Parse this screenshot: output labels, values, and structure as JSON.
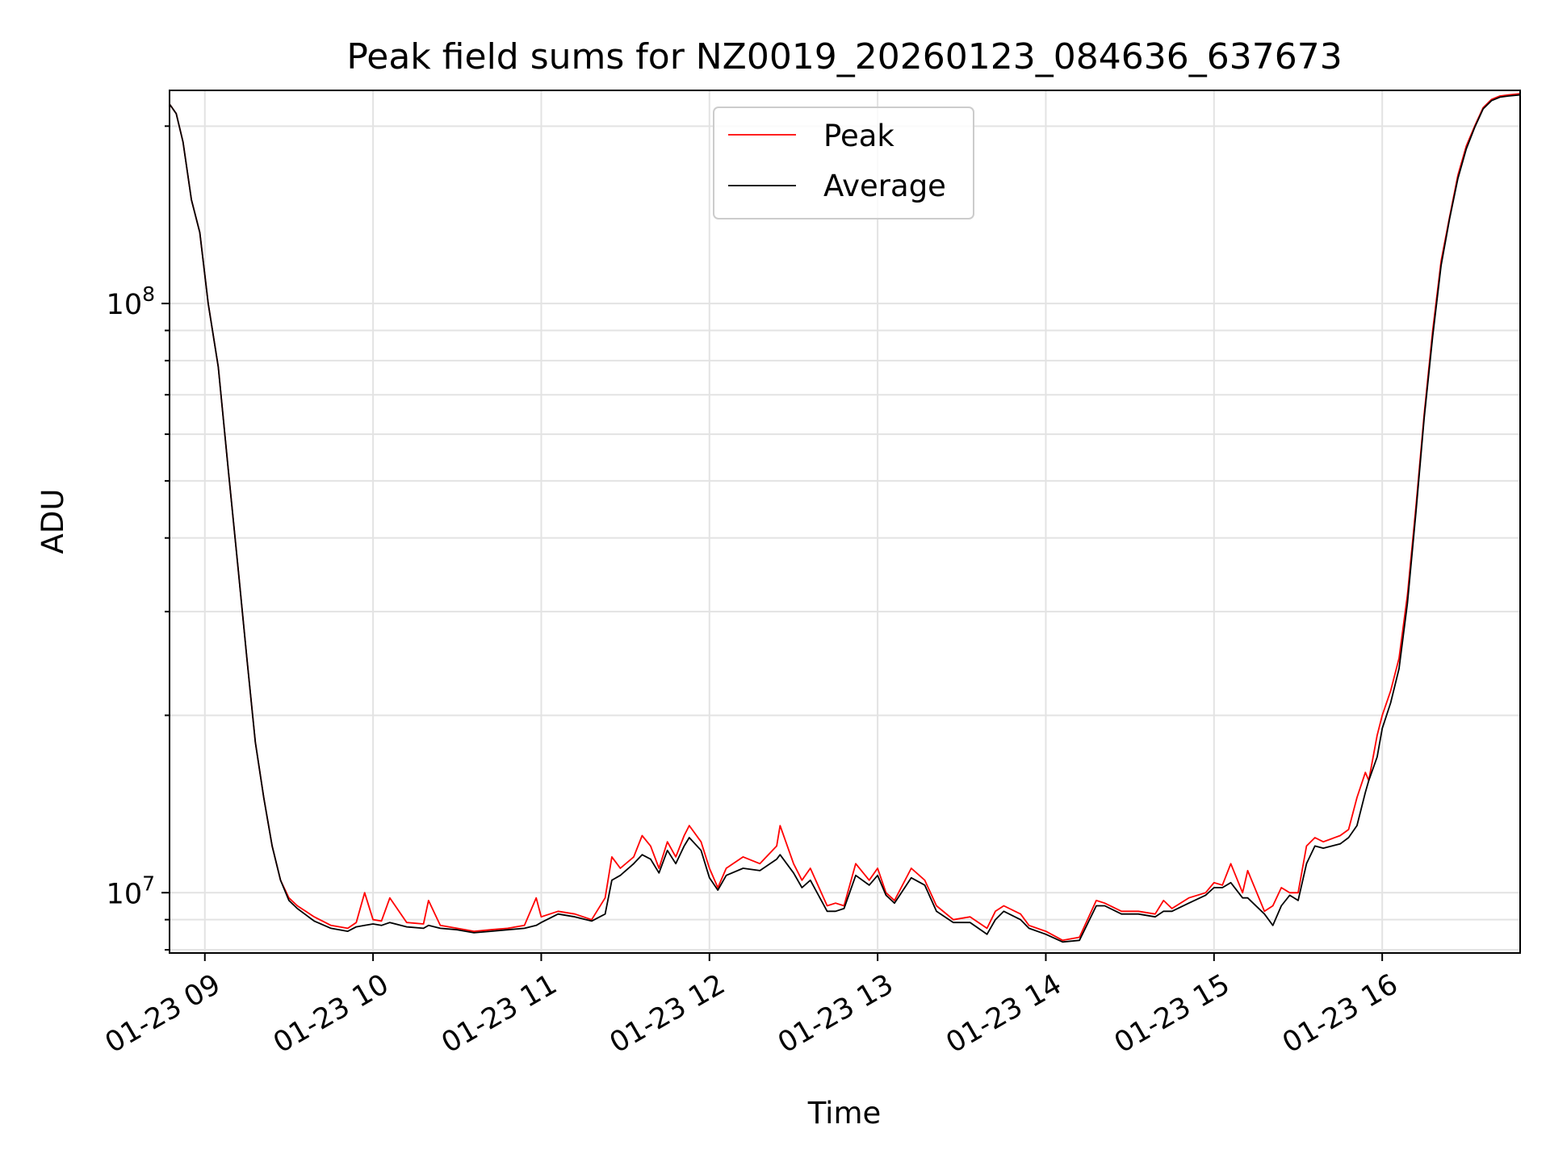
{
  "chart_data": {
    "type": "line",
    "title": "Peak field sums for NZ0019_20260123_084636_637673",
    "xlabel": "Time",
    "ylabel": "ADU",
    "y_scale": "log",
    "x_unit": "hour of 2026-01-23",
    "xlim": [
      8.79,
      16.82
    ],
    "ylim": [
      7900000,
      230000000
    ],
    "grid": true,
    "legend_position": "upper center",
    "x_tick_labels": [
      "01-23 09",
      "01-23 10",
      "01-23 11",
      "01-23 12",
      "01-23 13",
      "01-23 14",
      "01-23 15",
      "01-23 16"
    ],
    "y_tick_labels": [
      {
        "base": "10",
        "exp": "7"
      },
      {
        "base": "10",
        "exp": "8"
      }
    ],
    "series": [
      {
        "name": "Peak",
        "color": "#ff0000",
        "x": [
          8.79,
          8.83,
          8.87,
          8.92,
          8.97,
          9.02,
          9.08,
          9.14,
          9.2,
          9.25,
          9.3,
          9.35,
          9.4,
          9.45,
          9.5,
          9.55,
          9.65,
          9.75,
          9.85,
          9.9,
          9.95,
          10.0,
          10.05,
          10.1,
          10.2,
          10.3,
          10.33,
          10.4,
          10.5,
          10.6,
          10.7,
          10.8,
          10.9,
          10.97,
          11.0,
          11.1,
          11.2,
          11.3,
          11.38,
          11.42,
          11.47,
          11.55,
          11.6,
          11.65,
          11.7,
          11.75,
          11.8,
          11.85,
          11.88,
          11.95,
          12.0,
          12.05,
          12.1,
          12.2,
          12.3,
          12.4,
          12.42,
          12.5,
          12.55,
          12.6,
          12.7,
          12.75,
          12.8,
          12.87,
          12.95,
          13.0,
          13.05,
          13.1,
          13.2,
          13.28,
          13.35,
          13.45,
          13.55,
          13.65,
          13.7,
          13.75,
          13.85,
          13.9,
          14.0,
          14.1,
          14.2,
          14.3,
          14.35,
          14.45,
          14.55,
          14.65,
          14.7,
          14.75,
          14.85,
          14.95,
          15.0,
          15.05,
          15.1,
          15.17,
          15.2,
          15.3,
          15.35,
          15.4,
          15.45,
          15.5,
          15.55,
          15.6,
          15.65,
          15.75,
          15.8,
          15.85,
          15.9,
          15.92,
          15.97,
          16.0,
          16.05,
          16.1,
          16.15,
          16.2,
          16.25,
          16.3,
          16.35,
          16.4,
          16.45,
          16.5,
          16.55,
          16.6,
          16.65,
          16.7,
          16.75,
          16.82
        ],
        "values": [
          218000000,
          210000000,
          188000000,
          150000000,
          132000000,
          100000000,
          78000000,
          52000000,
          35000000,
          25000000,
          18000000,
          14500000,
          12000000,
          10500000,
          9800000,
          9500000,
          9100000,
          8800000,
          8700000,
          8900000,
          10000000,
          9000000,
          8950000,
          9800000,
          8900000,
          8850000,
          9700000,
          8800000,
          8700000,
          8600000,
          8650000,
          8700000,
          8800000,
          9800000,
          9100000,
          9300000,
          9200000,
          9000000,
          9800000,
          11500000,
          11000000,
          11500000,
          12500000,
          12000000,
          11000000,
          12200000,
          11500000,
          12500000,
          13000000,
          12200000,
          11000000,
          10200000,
          11000000,
          11500000,
          11200000,
          12000000,
          13000000,
          11200000,
          10500000,
          11000000,
          9500000,
          9600000,
          9500000,
          11200000,
          10500000,
          11000000,
          10000000,
          9700000,
          11000000,
          10500000,
          9500000,
          9000000,
          9100000,
          8700000,
          9300000,
          9500000,
          9200000,
          8800000,
          8600000,
          8300000,
          8400000,
          9700000,
          9600000,
          9300000,
          9300000,
          9200000,
          9700000,
          9400000,
          9800000,
          10000000,
          10400000,
          10300000,
          11200000,
          10000000,
          10900000,
          9300000,
          9500000,
          10200000,
          10000000,
          10000000,
          12000000,
          12400000,
          12200000,
          12500000,
          12800000,
          14500000,
          16000000,
          15500000,
          18500000,
          20000000,
          22000000,
          25000000,
          32000000,
          45000000,
          65000000,
          90000000,
          118000000,
          140000000,
          165000000,
          185000000,
          200000000,
          215000000,
          222000000,
          225000000,
          226000000,
          227000000
        ]
      },
      {
        "name": "Average",
        "color": "#000000",
        "x": [
          8.79,
          8.83,
          8.87,
          8.92,
          8.97,
          9.02,
          9.08,
          9.14,
          9.2,
          9.25,
          9.3,
          9.35,
          9.4,
          9.45,
          9.5,
          9.55,
          9.65,
          9.75,
          9.85,
          9.9,
          9.95,
          10.0,
          10.05,
          10.1,
          10.2,
          10.3,
          10.33,
          10.4,
          10.5,
          10.6,
          10.7,
          10.8,
          10.9,
          10.97,
          11.0,
          11.1,
          11.2,
          11.3,
          11.38,
          11.42,
          11.47,
          11.55,
          11.6,
          11.65,
          11.7,
          11.75,
          11.8,
          11.85,
          11.88,
          11.95,
          12.0,
          12.05,
          12.1,
          12.2,
          12.3,
          12.4,
          12.42,
          12.5,
          12.55,
          12.6,
          12.7,
          12.75,
          12.8,
          12.87,
          12.95,
          13.0,
          13.05,
          13.1,
          13.2,
          13.28,
          13.35,
          13.45,
          13.55,
          13.65,
          13.7,
          13.75,
          13.85,
          13.9,
          14.0,
          14.1,
          14.2,
          14.3,
          14.35,
          14.45,
          14.55,
          14.65,
          14.7,
          14.75,
          14.85,
          14.95,
          15.0,
          15.05,
          15.1,
          15.17,
          15.2,
          15.3,
          15.35,
          15.4,
          15.45,
          15.5,
          15.55,
          15.6,
          15.65,
          15.75,
          15.8,
          15.85,
          15.9,
          15.92,
          15.97,
          16.0,
          16.05,
          16.1,
          16.15,
          16.2,
          16.25,
          16.3,
          16.35,
          16.4,
          16.45,
          16.5,
          16.55,
          16.6,
          16.65,
          16.7,
          16.75,
          16.82
        ],
        "values": [
          218000000,
          210000000,
          188000000,
          150000000,
          132000000,
          100000000,
          78000000,
          52000000,
          35000000,
          25000000,
          18000000,
          14500000,
          12000000,
          10500000,
          9700000,
          9400000,
          8950000,
          8700000,
          8600000,
          8750000,
          8800000,
          8850000,
          8800000,
          8900000,
          8750000,
          8700000,
          8800000,
          8700000,
          8650000,
          8550000,
          8600000,
          8650000,
          8700000,
          8800000,
          8900000,
          9200000,
          9100000,
          8950000,
          9200000,
          10500000,
          10700000,
          11200000,
          11600000,
          11400000,
          10800000,
          11800000,
          11200000,
          12000000,
          12400000,
          11800000,
          10600000,
          10100000,
          10700000,
          11000000,
          10900000,
          11400000,
          11600000,
          10800000,
          10200000,
          10500000,
          9300000,
          9300000,
          9400000,
          10700000,
          10300000,
          10700000,
          9900000,
          9600000,
          10600000,
          10300000,
          9300000,
          8900000,
          8900000,
          8500000,
          9000000,
          9300000,
          9000000,
          8700000,
          8500000,
          8250000,
          8300000,
          9500000,
          9500000,
          9200000,
          9200000,
          9100000,
          9300000,
          9300000,
          9600000,
          9900000,
          10200000,
          10200000,
          10400000,
          9800000,
          9800000,
          9200000,
          8800000,
          9500000,
          9900000,
          9700000,
          11200000,
          12000000,
          11900000,
          12100000,
          12400000,
          13000000,
          14800000,
          15500000,
          17000000,
          19000000,
          21000000,
          24000000,
          31000000,
          44000000,
          64000000,
          88000000,
          116000000,
          139000000,
          163000000,
          183000000,
          199000000,
          214000000,
          221000000,
          224000000,
          225000000,
          226000000
        ]
      }
    ]
  }
}
